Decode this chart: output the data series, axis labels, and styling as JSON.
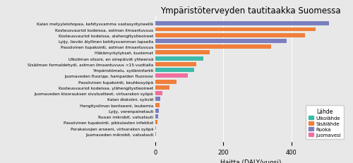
{
  "title": "Ympäristöterveyden tautitaakka Suomessa",
  "xlabel": "Haitta (DALY/vuosi)",
  "legend_title": "Lähde",
  "legend_labels": [
    "Ulkolähde",
    "Sisälähde",
    "Ruoka",
    "Juomavesi"
  ],
  "legend_colors": [
    "#3dbbaa",
    "#f07f3c",
    "#7b7fbf",
    "#f06fa0"
  ],
  "background_color": "#e8e8e8",
  "bars": [
    {
      "label": "Kalan metyylelohopea, kehitysvamma vastasyntyneellä",
      "value": 510,
      "color": "#7b7fbf"
    },
    {
      "label": "Kosteusvauriot kodeissa, astman ilmaantuvuus",
      "value": 470,
      "color": "#f07f3c"
    },
    {
      "label": "Kosteusvauriot kodeissa, alahengitystieoireet",
      "value": 440,
      "color": "#f07f3c"
    },
    {
      "label": "Lyijy, lievän älyllinen kehitysvamman lapsella",
      "value": 385,
      "color": "#7b7fbf"
    },
    {
      "label": "Passiivinen tupakointi, astman ilmaantuvuus",
      "value": 340,
      "color": "#f07f3c"
    },
    {
      "label": "Häkämyrkytykset, kuolemat",
      "value": 160,
      "color": "#f07f3c"
    },
    {
      "label": "Ulkoilman otsoni, en oirepäivät yhteensä",
      "value": 140,
      "color": "#3dbbaa"
    },
    {
      "label": "Sisäilman formaldehydi, astman ilmaantuvuus <15-vuotialla",
      "value": 120,
      "color": "#f07f3c"
    },
    {
      "label": "Ympäristömelu, sydäninfarkti",
      "value": 115,
      "color": "#3dbbaa"
    },
    {
      "label": "Juomaveden fluoriди, hampaiden fluoroosi",
      "value": 95,
      "color": "#f06fa0"
    },
    {
      "label": "Passiivinen tupakointi, keuhkosyöpä",
      "value": 62,
      "color": "#f07f3c"
    },
    {
      "label": "Kosteusvauriot kodeissa, ylähengitystieoireet",
      "value": 42,
      "color": "#f07f3c"
    },
    {
      "label": "Juomaveden kloorauksen sivutuotteet, virtsarakon syöpä",
      "value": 20,
      "color": "#f06fa0"
    },
    {
      "label": "Kalan dioksiini, syövät",
      "value": 14,
      "color": "#7b7fbf"
    },
    {
      "label": "Hengitysilman bentseeni, leukemia",
      "value": 12,
      "color": "#f07f3c"
    },
    {
      "label": "Lyijy, verenpainetauti",
      "value": 10,
      "color": "#7b7fbf"
    },
    {
      "label": "Ruoan mikrobit, vatsatauti",
      "value": 8,
      "color": "#7b7fbf"
    },
    {
      "label": "Passiivinen tupakointi, pikkulasten infektiot",
      "value": 7,
      "color": "#f07f3c"
    },
    {
      "label": "Porakaivojen arseeni, virtsarakon syöpä",
      "value": 3,
      "color": "#f06fa0"
    },
    {
      "label": "Juomaveden mikrobit, vatsatauti",
      "value": 2,
      "color": "#f06fa0"
    }
  ],
  "xlim": [
    0,
    560
  ],
  "xticks": [
    0,
    200,
    400
  ],
  "title_fontsize": 8.5,
  "label_fontsize": 4.2,
  "tick_fontsize": 6.0,
  "xlabel_fontsize": 6.5
}
